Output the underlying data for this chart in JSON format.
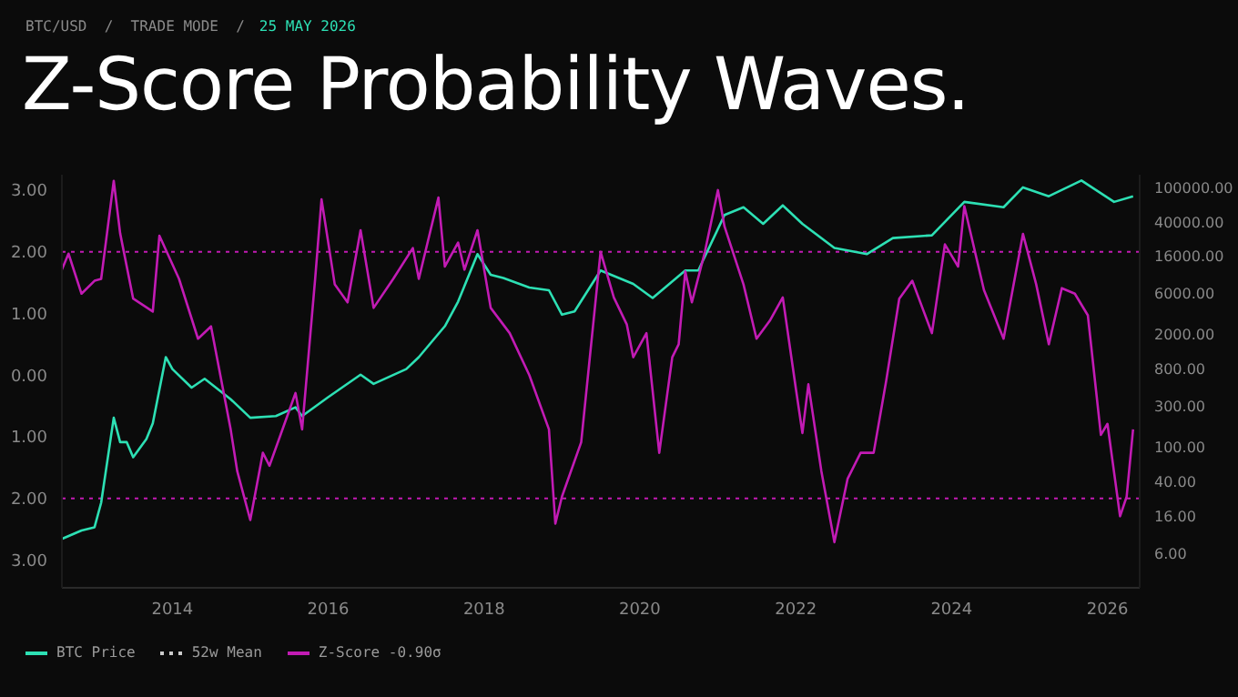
{
  "chart_data": {
    "type": "line",
    "title": "Z-Score Probability Waves.",
    "subtitle": "BTC/USD  /  TRADE MODE  /",
    "annotations": [
      "25 MAY 2026"
    ],
    "xlim": [
      "2012-08",
      "2026-06"
    ],
    "xticks": [
      "2014",
      "2016",
      "2018",
      "2020",
      "2022",
      "2024",
      "2026"
    ],
    "ylim": [
      -3.45,
      3.25
    ],
    "yticks": [
      {
        "value": -3,
        "label": "3.00"
      },
      {
        "value": -2,
        "label": "2.00"
      },
      {
        "value": -1,
        "label": "1.00"
      },
      {
        "value": 0,
        "label": "0.00"
      },
      {
        "value": 1,
        "label": "1.00"
      },
      {
        "value": 2,
        "label": "2.00"
      },
      {
        "value": 3,
        "label": "3.00"
      }
    ],
    "y2lim": [
      2.4,
      140000
    ],
    "y2ticks": [
      {
        "value": 6,
        "label": "6.00"
      },
      {
        "value": 16,
        "label": "16.00"
      },
      {
        "value": 40,
        "label": "40.00"
      },
      {
        "value": 100,
        "label": "100.00"
      },
      {
        "value": 300,
        "label": "300.00"
      },
      {
        "value": 800,
        "label": "800.00"
      },
      {
        "value": 2000,
        "label": "2000.00"
      },
      {
        "value": 6000,
        "label": "6000.00"
      },
      {
        "value": 16000,
        "label": "16000.00"
      },
      {
        "value": 40000,
        "label": "40000.00"
      },
      {
        "value": 100000,
        "label": "100000.00"
      }
    ],
    "log": "y2",
    "grid": false,
    "legend": "bottom left",
    "ref_lines": [
      {
        "axis": "y",
        "value": 2,
        "color": "#c21bb4",
        "line_style": "dotted"
      },
      {
        "axis": "y",
        "value": -2,
        "color": "#c21bb4",
        "line_style": "dotted"
      }
    ],
    "series": [
      {
        "name": "BTC Price",
        "color": "#2de0b4",
        "axis": "y2",
        "x": [
          "2012-08",
          "2012-11",
          "2013-01",
          "2013-02",
          "2013-04",
          "2013-05",
          "2013-06",
          "2013-07",
          "2013-09",
          "2013-10",
          "2013-12",
          "2014-01",
          "2014-04",
          "2014-06",
          "2014-10",
          "2015-01",
          "2015-05",
          "2015-08",
          "2015-09",
          "2016-01",
          "2016-06",
          "2016-08",
          "2017-01",
          "2017-03",
          "2017-07",
          "2017-09",
          "2017-12",
          "2018-02",
          "2018-04",
          "2018-08",
          "2018-11",
          "2019-01",
          "2019-03",
          "2019-07",
          "2019-12",
          "2020-03",
          "2020-08",
          "2020-10",
          "2021-02",
          "2021-05",
          "2021-08",
          "2021-11",
          "2022-02",
          "2022-07",
          "2022-12",
          "2023-04",
          "2023-10",
          "2024-03",
          "2024-09",
          "2024-12",
          "2025-04",
          "2025-09",
          "2026-02",
          "2026-05"
        ],
        "values": [
          8.8,
          11,
          12,
          23,
          220,
          115,
          115,
          77,
          125,
          190,
          1100,
          800,
          490,
          620,
          360,
          220,
          230,
          290,
          230,
          380,
          690,
          540,
          800,
          1100,
          2500,
          4800,
          17000,
          9800,
          9000,
          7000,
          6500,
          3400,
          3700,
          11000,
          7700,
          5300,
          11000,
          11000,
          48000,
          59000,
          38000,
          62000,
          38000,
          20000,
          17000,
          26000,
          28000,
          68000,
          59000,
          100000,
          79000,
          120000,
          68000,
          79000
        ]
      },
      {
        "name": "52w Mean",
        "color": "#cccccc",
        "line_style": "dotted"
      },
      {
        "name": "Z-Score -0.90σ",
        "color": "#c21bb4",
        "x": [
          "2012-08",
          "2012-09",
          "2012-11",
          "2013-01",
          "2013-02",
          "2013-04",
          "2013-05",
          "2013-07",
          "2013-10",
          "2013-11",
          "2014-02",
          "2014-05",
          "2014-07",
          "2014-10",
          "2014-11",
          "2015-01",
          "2015-03",
          "2015-04",
          "2015-07",
          "2015-08",
          "2015-09",
          "2015-11",
          "2015-12",
          "2016-02",
          "2016-04",
          "2016-06",
          "2016-08",
          "2016-11",
          "2017-02",
          "2017-03",
          "2017-06",
          "2017-07",
          "2017-09",
          "2017-10",
          "2017-12",
          "2018-02",
          "2018-05",
          "2018-08",
          "2018-11",
          "2018-12",
          "2019-01",
          "2019-04",
          "2019-07",
          "2019-09",
          "2019-11",
          "2019-12",
          "2020-02",
          "2020-04",
          "2020-06",
          "2020-07",
          "2020-08",
          "2020-09",
          "2020-11",
          "2021-01",
          "2021-02",
          "2021-05",
          "2021-07",
          "2021-09",
          "2021-11",
          "2022-01",
          "2022-02",
          "2022-03",
          "2022-05",
          "2022-07",
          "2022-09",
          "2022-11",
          "2023-01",
          "2023-03",
          "2023-05",
          "2023-07",
          "2023-10",
          "2023-12",
          "2024-02",
          "2024-03",
          "2024-06",
          "2024-09",
          "2024-12",
          "2025-02",
          "2025-04",
          "2025-06",
          "2025-08",
          "2025-10",
          "2025-12",
          "2026-01",
          "2026-03",
          "2026-04",
          "2026-05"
        ],
        "values": [
          1.71,
          1.97,
          1.32,
          1.53,
          1.56,
          3.15,
          2.3,
          1.24,
          1.03,
          2.26,
          1.56,
          0.59,
          0.79,
          -0.88,
          -1.56,
          -2.35,
          -1.26,
          -1.47,
          -0.59,
          -0.29,
          -0.88,
          1.56,
          2.85,
          1.47,
          1.18,
          2.35,
          1.09,
          1.56,
          2.06,
          1.56,
          2.88,
          1.76,
          2.15,
          1.71,
          2.35,
          1.09,
          0.68,
          0,
          -0.88,
          -2.41,
          -1.97,
          -1.09,
          2.0,
          1.26,
          0.82,
          0.29,
          0.68,
          -1.26,
          0.29,
          0.5,
          1.68,
          1.18,
          2.0,
          3.0,
          2.41,
          1.47,
          0.59,
          0.88,
          1.26,
          -0.21,
          -0.94,
          -0.15,
          -1.56,
          -2.71,
          -1.68,
          -1.26,
          -1.26,
          -0.09,
          1.24,
          1.53,
          0.68,
          2.12,
          1.76,
          2.74,
          1.38,
          0.59,
          2.29,
          1.47,
          0.5,
          1.41,
          1.32,
          0.97,
          -0.97,
          -0.79,
          -2.29,
          -1.97,
          -0.88
        ]
      }
    ]
  }
}
